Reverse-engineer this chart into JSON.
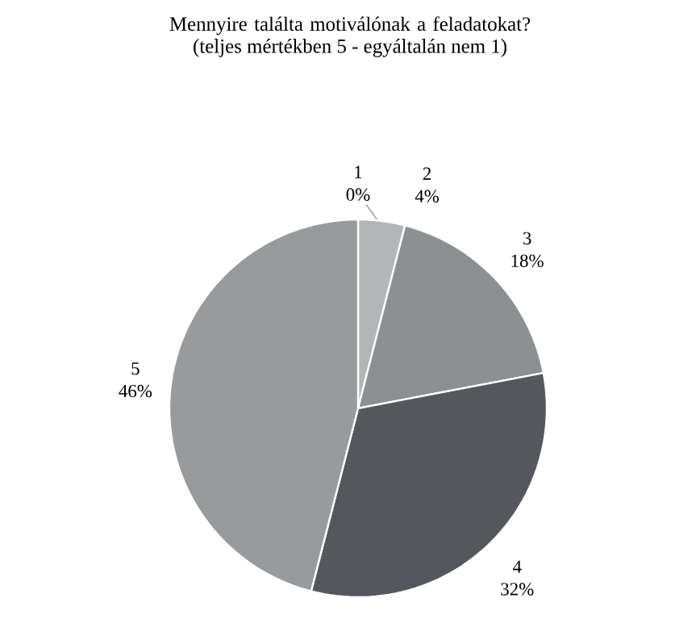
{
  "chart_data": {
    "type": "pie",
    "title": "Mennyire találta motiválónak a feladatokat?",
    "subtitle": "(teljes mértékben 5 - egyáltalán nem 1)",
    "categories": [
      "1",
      "2",
      "3",
      "4",
      "5"
    ],
    "values": [
      0,
      4,
      18,
      32,
      46
    ],
    "value_labels": [
      "0%",
      "4%",
      "18%",
      "32%",
      "46%"
    ],
    "colors": [
      "#d0d1d2",
      "#b3b5b6",
      "#8d9093",
      "#54575c",
      "#989a9c"
    ]
  }
}
